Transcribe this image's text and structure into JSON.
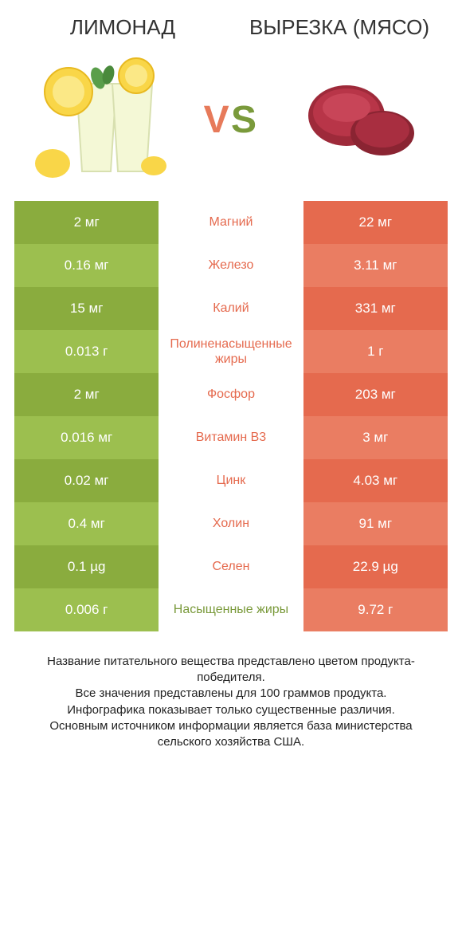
{
  "header": {
    "left_title": "ЛИМОНАД",
    "right_title": "ВЫРЕЗКА (МЯСО)",
    "vs_text": "VS"
  },
  "colors": {
    "left_dark": "#8aac3e",
    "left_light": "#9cbf4f",
    "right_dark": "#e56a4e",
    "right_light": "#ea7d62",
    "mid_green": "#7a9a3b",
    "mid_orange": "#e56a4e",
    "vs_v": "#e56a4e",
    "vs_s": "#7a9a3b",
    "text_dark": "#222222",
    "bg": "#ffffff"
  },
  "typography": {
    "title_fontsize": 26,
    "cell_fontsize": 17,
    "mid_fontsize": 16,
    "footer_fontsize": 15,
    "vs_fontsize": 48
  },
  "rows": [
    {
      "left": "2 мг",
      "label": "Магний",
      "right": "22 мг",
      "winner": "right"
    },
    {
      "left": "0.16 мг",
      "label": "Железо",
      "right": "3.11 мг",
      "winner": "right"
    },
    {
      "left": "15 мг",
      "label": "Калий",
      "right": "331 мг",
      "winner": "right"
    },
    {
      "left": "0.013 г",
      "label": "Полиненасыщенные жиры",
      "right": "1 г",
      "winner": "right"
    },
    {
      "left": "2 мг",
      "label": "Фосфор",
      "right": "203 мг",
      "winner": "right"
    },
    {
      "left": "0.016 мг",
      "label": "Витамин B3",
      "right": "3 мг",
      "winner": "right"
    },
    {
      "left": "0.02 мг",
      "label": "Цинк",
      "right": "4.03 мг",
      "winner": "right"
    },
    {
      "left": "0.4 мг",
      "label": "Холин",
      "right": "91 мг",
      "winner": "right"
    },
    {
      "left": "0.1 µg",
      "label": "Селен",
      "right": "22.9 µg",
      "winner": "right"
    },
    {
      "left": "0.006 г",
      "label": "Насыщенные жиры",
      "right": "9.72 г",
      "winner": "left"
    }
  ],
  "footer_lines": [
    "Название питательного вещества представлено цветом продукта-победителя.",
    "Все значения представлены для 100 граммов продукта.",
    "Инфографика показывает только существенные различия.",
    "Основным источником информации является база министерства сельского хозяйства США."
  ]
}
